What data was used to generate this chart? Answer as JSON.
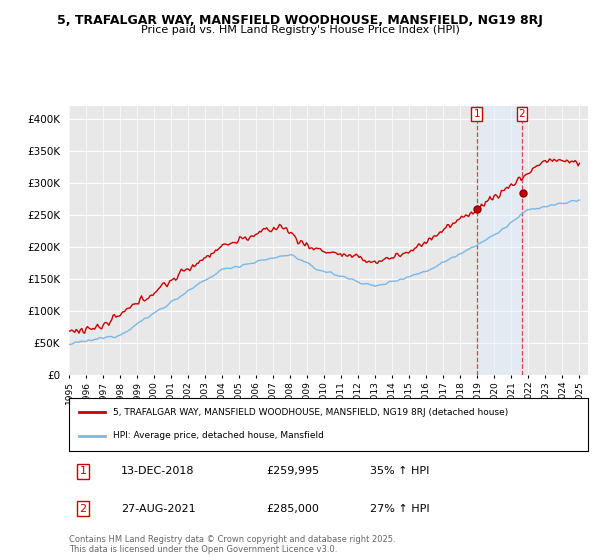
{
  "title_line1": "5, TRAFALGAR WAY, MANSFIELD WOODHOUSE, MANSFIELD, NG19 8RJ",
  "title_line2": "Price paid vs. HM Land Registry's House Price Index (HPI)",
  "ylim": [
    0,
    420000
  ],
  "yticks": [
    0,
    50000,
    100000,
    150000,
    200000,
    250000,
    300000,
    350000,
    400000
  ],
  "ytick_labels": [
    "£0",
    "£50K",
    "£100K",
    "£150K",
    "£200K",
    "£250K",
    "£300K",
    "£350K",
    "£400K"
  ],
  "hpi_color": "#7ab8e8",
  "price_color": "#cc0000",
  "marker1_price": 259995,
  "marker2_price": 285000,
  "t1": 2018.958,
  "t2": 2021.625,
  "annotation1": [
    "1",
    "13-DEC-2018",
    "£259,995",
    "35% ↑ HPI"
  ],
  "annotation2": [
    "2",
    "27-AUG-2021",
    "£285,000",
    "27% ↑ HPI"
  ],
  "legend_label1": "5, TRAFALGAR WAY, MANSFIELD WOODHOUSE, MANSFIELD, NG19 8RJ (detached house)",
  "legend_label2": "HPI: Average price, detached house, Mansfield",
  "copyright": "Contains HM Land Registry data © Crown copyright and database right 2025.\nThis data is licensed under the Open Government Licence v3.0.",
  "bg_color": "#ffffff",
  "plot_bg_color": "#e8e8e8",
  "shade_color": "#ddeeff",
  "grid_color": "#ffffff"
}
